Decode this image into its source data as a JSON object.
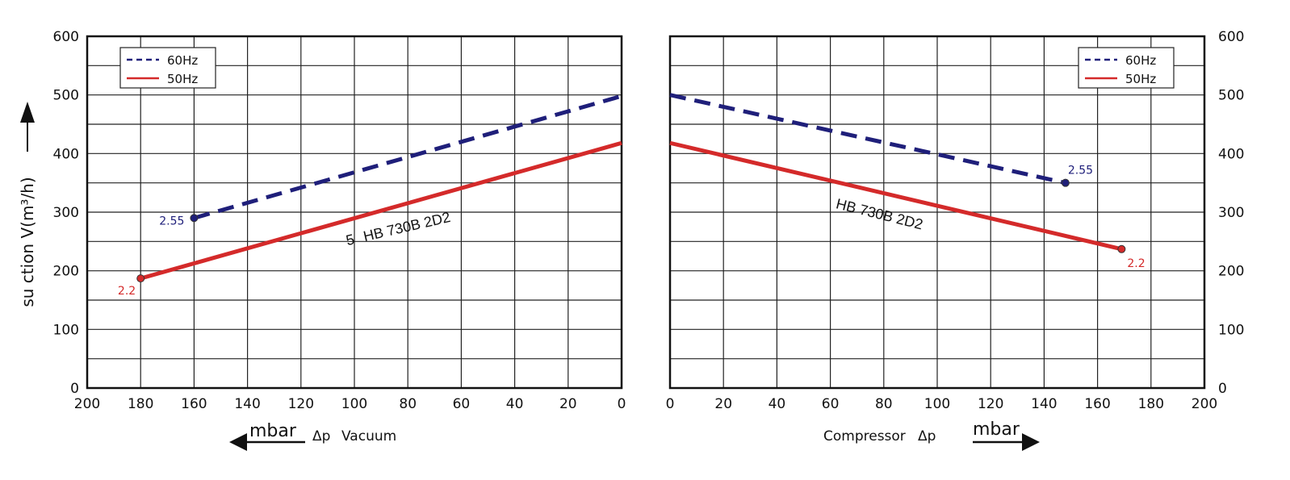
{
  "colors": {
    "hz60": "#1f1f7a",
    "hz50": "#d42a2a",
    "grid": "#222222"
  },
  "chart_data": [
    {
      "type": "line",
      "model": "HB 730B 2D2",
      "model_prefix": "5",
      "ylabel": "su ction V(m³/h)",
      "xlabel_unit": "mbar",
      "xlabel_symbol": "Δp",
      "xlabel_text": "Vacuum",
      "xlim": [
        200,
        0
      ],
      "ylim": [
        0,
        600
      ],
      "xticks": [
        "200",
        "180",
        "160",
        "140",
        "120",
        "100",
        "80",
        "60",
        "40",
        "20",
        "0"
      ],
      "yticks": [
        "0",
        "100",
        "200",
        "300",
        "400",
        "500",
        "600"
      ],
      "grid": true,
      "legend": {
        "placement": "top-left",
        "entries": [
          "60Hz",
          "50Hz"
        ]
      },
      "series": [
        {
          "name": "60Hz",
          "style": "dashed",
          "x": [
            160,
            0
          ],
          "y": [
            290,
            498
          ],
          "end_label": "2.55"
        },
        {
          "name": "50Hz",
          "style": "solid",
          "x": [
            180,
            0
          ],
          "y": [
            187,
            418
          ],
          "end_label": "2.2"
        }
      ]
    },
    {
      "type": "line",
      "model": "HB 730B 2D2",
      "xlabel_text": "Compressor",
      "xlabel_symbol": "Δp",
      "xlabel_unit": "mbar",
      "xlim": [
        0,
        200
      ],
      "ylim": [
        0,
        600
      ],
      "xticks": [
        "0",
        "20",
        "40",
        "60",
        "80",
        "100",
        "120",
        "140",
        "160",
        "180",
        "200"
      ],
      "yticks": [
        "0",
        "100",
        "200",
        "300",
        "400",
        "500",
        "600"
      ],
      "grid": true,
      "legend": {
        "placement": "top-right",
        "entries": [
          "60Hz",
          "50Hz"
        ]
      },
      "series": [
        {
          "name": "60Hz",
          "style": "dashed",
          "x": [
            0,
            148
          ],
          "y": [
            500,
            350
          ],
          "end_label": "2.55"
        },
        {
          "name": "50Hz",
          "style": "solid",
          "x": [
            0,
            169
          ],
          "y": [
            418,
            237
          ],
          "end_label": "2.2"
        }
      ]
    }
  ]
}
